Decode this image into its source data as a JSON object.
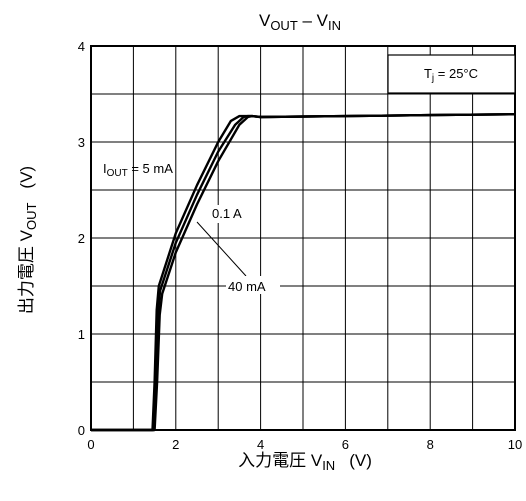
{
  "chart_data": {
    "type": "line",
    "title": {
      "main": "V",
      "sub1": "OUT",
      "mid": " – V",
      "sub2": "IN"
    },
    "xlabel": {
      "main": "入力電圧   V",
      "sub": "IN",
      "unit": "(V)"
    },
    "ylabel": {
      "main": "出力電圧   V",
      "sub": "OUT",
      "unit": "(V)"
    },
    "xlim": [
      0,
      10
    ],
    "ylim": [
      0,
      4
    ],
    "x_ticks": [
      "0",
      "2",
      "4",
      "6",
      "8",
      "10"
    ],
    "y_ticks": [
      "0",
      "1",
      "2",
      "3",
      "4"
    ],
    "grid": true,
    "condition": {
      "main": "T",
      "sub": "j",
      "rest": " = 25°C"
    },
    "series": [
      {
        "name": {
          "main": "I",
          "sub": "OUT",
          "rest": " = 5 mA"
        },
        "x": [
          0,
          1.45,
          1.5,
          1.55,
          1.6,
          2,
          2.5,
          3,
          3.3,
          3.5,
          3.6,
          3.8,
          4,
          6,
          8,
          10
        ],
        "y": [
          0,
          0,
          0.5,
          1.25,
          1.5,
          2.05,
          2.55,
          3.0,
          3.22,
          3.27,
          3.27,
          3.27,
          3.26,
          3.27,
          3.28,
          3.29
        ]
      },
      {
        "name": {
          "main": "40 mA",
          "sub": "",
          "rest": ""
        },
        "x": [
          0,
          1.48,
          1.53,
          1.58,
          1.63,
          2,
          2.5,
          3,
          3.4,
          3.6,
          3.7,
          3.8,
          4,
          6,
          8,
          10
        ],
        "y": [
          0,
          0,
          0.5,
          1.22,
          1.45,
          1.95,
          2.45,
          2.9,
          3.18,
          3.26,
          3.27,
          3.27,
          3.26,
          3.27,
          3.28,
          3.29
        ]
      },
      {
        "name": {
          "main": "0.1 A",
          "sub": "",
          "rest": ""
        },
        "x": [
          0,
          1.5,
          1.56,
          1.62,
          1.68,
          2,
          2.5,
          3,
          3.5,
          3.7,
          3.8,
          4,
          6,
          8,
          10
        ],
        "y": [
          0,
          0,
          0.5,
          1.2,
          1.42,
          1.85,
          2.35,
          2.8,
          3.18,
          3.26,
          3.27,
          3.26,
          3.27,
          3.28,
          3.29
        ]
      }
    ]
  }
}
